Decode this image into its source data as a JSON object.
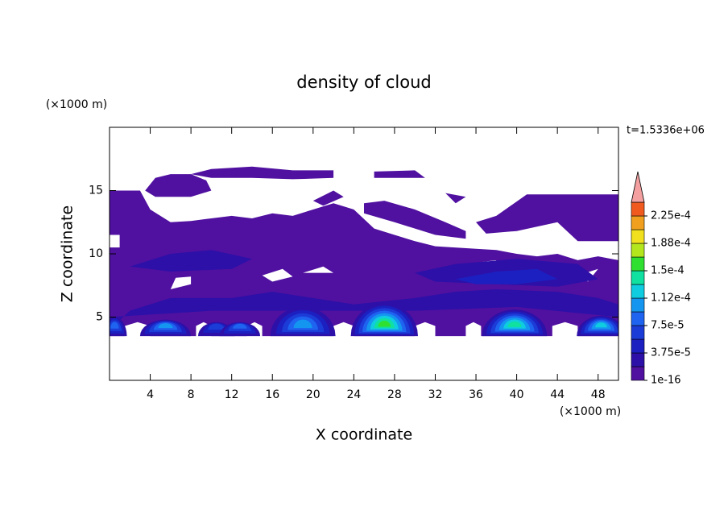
{
  "chart_data": {
    "type": "contour",
    "title": "density of cloud",
    "x_label": "X coordinate",
    "y_label": "Z coordinate",
    "x_unit": "(×1000 m)",
    "y_unit": "(×1000 m)",
    "annotation": "t=1.5336e+06",
    "xlim": [
      0,
      50
    ],
    "ylim": [
      0,
      20
    ],
    "xticks": [
      4,
      8,
      12,
      16,
      20,
      24,
      28,
      32,
      36,
      40,
      44,
      48
    ],
    "yticks": [
      5,
      10,
      15
    ],
    "levels": [
      1e-16,
      1.875e-05,
      3.75e-05,
      5.625e-05,
      7.5e-05,
      9.375e-05,
      0.0001125,
      0.00013125,
      0.00015,
      0.00016875,
      0.0001875,
      0.00020625,
      0.000225,
      0.00024375
    ],
    "colors": [
      "#5010a0",
      "#2c10a8",
      "#1c20c0",
      "#1c3cd8",
      "#1e64f0",
      "#1496f0",
      "#10cce0",
      "#10e0a0",
      "#30e030",
      "#b4e61e",
      "#f0e01e",
      "#f0a01e",
      "#f05a1e"
    ],
    "extend_color": "#f4a0a0",
    "colorbar_ticks": [
      {
        "value": 1e-16,
        "label": "1e-16"
      },
      {
        "value": 3.75e-05,
        "label": "3.75e-5"
      },
      {
        "value": 7.5e-05,
        "label": "7.5e-5"
      },
      {
        "value": 0.0001125,
        "label": "1.12e-4"
      },
      {
        "value": 0.00015,
        "label": "1.5e-4"
      },
      {
        "value": 0.0001875,
        "label": "1.88e-4"
      },
      {
        "value": 0.000225,
        "label": "2.25e-4"
      }
    ]
  }
}
